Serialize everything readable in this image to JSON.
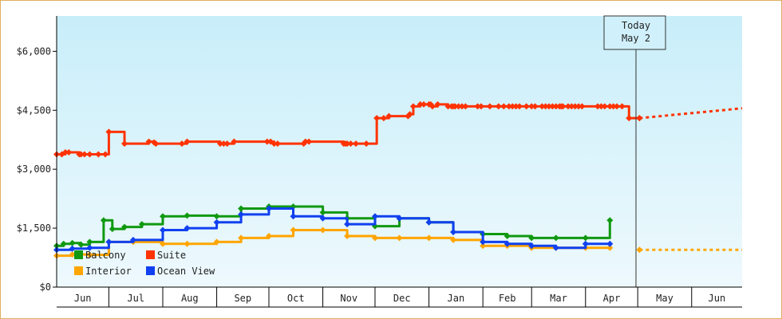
{
  "chart_data": {
    "type": "line",
    "title": "",
    "xlabel": "",
    "ylabel": "",
    "ylim": [
      0,
      6900
    ],
    "xlim": [
      "2024-06-01",
      "2025-06-30"
    ],
    "y_ticks": [
      "$0",
      "$1,500",
      "$3,000",
      "$4,500",
      "$6,000"
    ],
    "x_ticks": [
      "Jun",
      "Jul",
      "Aug",
      "Sep",
      "Oct",
      "Nov",
      "Dec",
      "Jan",
      "Feb",
      "Mar",
      "Apr",
      "May",
      "Jun"
    ],
    "grid": false,
    "legend_position": "bottom-left",
    "today": {
      "label": "Today",
      "date_label": "May 2",
      "date": "2025-05-02"
    },
    "colors": {
      "Suite": "#ff3300",
      "Balcony": "#109910",
      "Interior": "#ffa500",
      "Ocean View": "#1040f0",
      "background_top": "#c8eefa",
      "background_bottom": "#eef9fd"
    },
    "series": [
      {
        "name": "Suite",
        "color": "#ff3300",
        "x": [
          "2024-06-01",
          "2024-06-04",
          "2024-06-06",
          "2024-06-08",
          "2024-06-14",
          "2024-06-15",
          "2024-06-17",
          "2024-06-20",
          "2024-06-25",
          "2024-06-29",
          "2024-07-01",
          "2024-07-10",
          "2024-07-24",
          "2024-07-27",
          "2024-07-28",
          "2024-08-12",
          "2024-08-15",
          "2024-09-03",
          "2024-09-05",
          "2024-09-07",
          "2024-09-11",
          "2024-09-30",
          "2024-10-02",
          "2024-10-04",
          "2024-10-06",
          "2024-10-21",
          "2024-10-22",
          "2024-10-24",
          "2024-11-13",
          "2024-11-14",
          "2024-11-15",
          "2024-11-17",
          "2024-11-20",
          "2024-11-26",
          "2024-12-02",
          "2024-12-06",
          "2024-12-09",
          "2024-12-20",
          "2024-12-21",
          "2024-12-23",
          "2024-12-27",
          "2024-12-29",
          "2025-01-01",
          "2025-01-02",
          "2025-01-03",
          "2025-01-06",
          "2025-01-12",
          "2025-01-14",
          "2025-01-15",
          "2025-01-16",
          "2025-01-18",
          "2025-01-20",
          "2025-01-22",
          "2025-01-29",
          "2025-01-31",
          "2025-02-05",
          "2025-02-10",
          "2025-02-13",
          "2025-02-16",
          "2025-02-18",
          "2025-02-20",
          "2025-02-22",
          "2025-02-26",
          "2025-03-01",
          "2025-03-03",
          "2025-03-07",
          "2025-03-09",
          "2025-03-11",
          "2025-03-13",
          "2025-03-15",
          "2025-03-17",
          "2025-03-18",
          "2025-03-19",
          "2025-03-22",
          "2025-03-24",
          "2025-03-26",
          "2025-03-28",
          "2025-03-30",
          "2025-04-08",
          "2025-04-10",
          "2025-04-12",
          "2025-04-15",
          "2025-04-17",
          "2025-04-19",
          "2025-04-22",
          "2025-04-26",
          "2025-05-02"
        ],
        "values": [
          3380,
          3380,
          3430,
          3430,
          3380,
          3380,
          3380,
          3380,
          3380,
          3380,
          3950,
          3650,
          3700,
          3680,
          3650,
          3650,
          3700,
          3650,
          3650,
          3650,
          3700,
          3700,
          3700,
          3650,
          3650,
          3650,
          3700,
          3700,
          3650,
          3650,
          3650,
          3650,
          3650,
          3650,
          4300,
          4300,
          4350,
          4350,
          4400,
          4600,
          4650,
          4650,
          4650,
          4650,
          4600,
          4650,
          4600,
          4600,
          4600,
          4600,
          4600,
          4600,
          4600,
          4600,
          4600,
          4600,
          4600,
          4600,
          4600,
          4600,
          4600,
          4600,
          4600,
          4600,
          4600,
          4600,
          4600,
          4600,
          4600,
          4600,
          4600,
          4600,
          4600,
          4600,
          4600,
          4600,
          4600,
          4600,
          4600,
          4600,
          4600,
          4600,
          4600,
          4600,
          4600,
          4300,
          4300
        ],
        "forecast": {
          "x": [
            "2025-05-02",
            "2025-06-30"
          ],
          "values": [
            4300,
            4550
          ]
        }
      },
      {
        "name": "Balcony",
        "color": "#109910",
        "x": [
          "2024-06-01",
          "2024-06-05",
          "2024-06-10",
          "2024-06-15",
          "2024-06-20",
          "2024-06-28",
          "2024-07-03",
          "2024-07-10",
          "2024-07-20",
          "2024-08-01",
          "2024-08-15",
          "2024-09-01",
          "2024-09-15",
          "2024-10-01",
          "2024-10-15",
          "2024-11-01",
          "2024-11-15",
          "2024-12-01",
          "2024-12-15",
          "2025-01-01",
          "2025-01-15",
          "2025-02-01",
          "2025-02-15",
          "2025-03-01",
          "2025-03-15",
          "2025-04-01",
          "2025-04-15"
        ],
        "values": [
          1050,
          1100,
          1120,
          1080,
          1150,
          1700,
          1480,
          1530,
          1600,
          1800,
          1820,
          1800,
          2000,
          2050,
          2050,
          1900,
          1750,
          1550,
          1750,
          1650,
          1400,
          1350,
          1300,
          1250,
          1250,
          1250,
          1700
        ]
      },
      {
        "name": "Interior",
        "color": "#ffa500",
        "x": [
          "2024-06-01",
          "2024-06-10",
          "2024-06-20",
          "2024-07-01",
          "2024-07-15",
          "2024-08-01",
          "2024-08-15",
          "2024-09-01",
          "2024-09-15",
          "2024-10-01",
          "2024-10-15",
          "2024-11-01",
          "2024-11-15",
          "2024-12-01",
          "2024-12-15",
          "2025-01-01",
          "2025-01-15",
          "2025-02-01",
          "2025-02-15",
          "2025-03-01",
          "2025-03-15",
          "2025-04-01",
          "2025-04-15"
        ],
        "values": [
          800,
          830,
          820,
          1150,
          1150,
          1100,
          1100,
          1150,
          1250,
          1300,
          1450,
          1450,
          1300,
          1250,
          1250,
          1250,
          1200,
          1050,
          1050,
          1000,
          1000,
          1000,
          1000
        ],
        "forecast": {
          "x": [
            "2025-05-02",
            "2025-06-30"
          ],
          "values": [
            950,
            950
          ]
        }
      },
      {
        "name": "Ocean View",
        "color": "#1040f0",
        "x": [
          "2024-06-01",
          "2024-06-10",
          "2024-06-20",
          "2024-07-01",
          "2024-07-15",
          "2024-08-01",
          "2024-08-15",
          "2024-09-01",
          "2024-09-15",
          "2024-10-01",
          "2024-10-15",
          "2024-11-01",
          "2024-11-15",
          "2024-12-01",
          "2024-12-15",
          "2025-01-01",
          "2025-01-15",
          "2025-02-01",
          "2025-02-15",
          "2025-03-01",
          "2025-03-15",
          "2025-04-01",
          "2025-04-15"
        ],
        "values": [
          950,
          980,
          1000,
          1150,
          1200,
          1450,
          1500,
          1650,
          1850,
          2000,
          1800,
          1750,
          1600,
          1800,
          1750,
          1650,
          1400,
          1150,
          1100,
          1050,
          1000,
          1100,
          1100
        ]
      }
    ]
  }
}
